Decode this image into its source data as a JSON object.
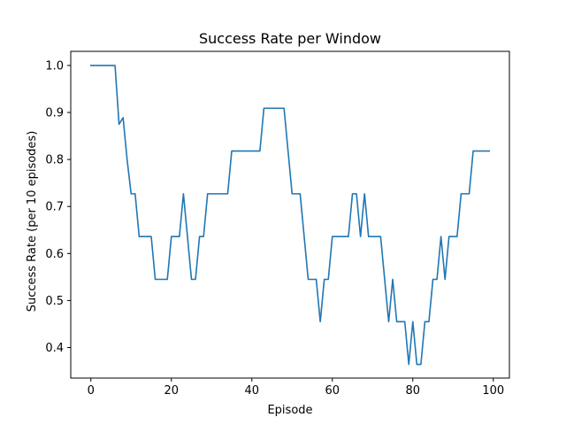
{
  "chart_data": {
    "type": "line",
    "title": "Success Rate per Window",
    "xlabel": "Episode",
    "ylabel": "Success Rate (per 10 episodes)",
    "xlim": [
      -5,
      104
    ],
    "ylim": [
      0.335,
      1.03
    ],
    "xticks": [
      0,
      20,
      40,
      60,
      80,
      100
    ],
    "yticks": [
      0.4,
      0.5,
      0.6,
      0.7,
      0.8,
      0.9,
      1.0
    ],
    "xtick_labels": [
      "0",
      "20",
      "40",
      "60",
      "80",
      "100"
    ],
    "ytick_labels": [
      "0.4",
      "0.5",
      "0.6",
      "0.7",
      "0.8",
      "0.9",
      "1.0"
    ],
    "grid": false,
    "series": [
      {
        "color": "#1f77b4",
        "x": [
          0,
          1,
          2,
          3,
          4,
          5,
          6,
          7,
          8,
          9,
          10,
          11,
          12,
          13,
          14,
          15,
          16,
          17,
          18,
          19,
          20,
          21,
          22,
          23,
          24,
          25,
          26,
          27,
          28,
          29,
          30,
          31,
          32,
          33,
          34,
          35,
          36,
          37,
          38,
          39,
          40,
          41,
          42,
          43,
          44,
          45,
          46,
          47,
          48,
          49,
          50,
          51,
          52,
          53,
          54,
          55,
          56,
          57,
          58,
          59,
          60,
          61,
          62,
          63,
          64,
          65,
          66,
          67,
          68,
          69,
          70,
          71,
          72,
          73,
          74,
          75,
          76,
          77,
          78,
          79,
          80,
          81,
          82,
          83,
          84,
          85,
          86,
          87,
          88,
          89,
          90,
          91,
          92,
          93,
          94,
          95,
          96,
          97,
          98,
          99
        ],
        "y": [
          1.0,
          1.0,
          1.0,
          1.0,
          1.0,
          1.0,
          1.0,
          0.875,
          0.889,
          0.8,
          0.727,
          0.727,
          0.636,
          0.636,
          0.636,
          0.636,
          0.545,
          0.545,
          0.545,
          0.545,
          0.636,
          0.636,
          0.636,
          0.727,
          0.636,
          0.545,
          0.545,
          0.636,
          0.636,
          0.727,
          0.727,
          0.727,
          0.727,
          0.727,
          0.727,
          0.818,
          0.818,
          0.818,
          0.818,
          0.818,
          0.818,
          0.818,
          0.818,
          0.909,
          0.909,
          0.909,
          0.909,
          0.909,
          0.909,
          0.818,
          0.727,
          0.727,
          0.727,
          0.636,
          0.545,
          0.545,
          0.545,
          0.455,
          0.545,
          0.545,
          0.636,
          0.636,
          0.636,
          0.636,
          0.636,
          0.727,
          0.727,
          0.636,
          0.727,
          0.636,
          0.636,
          0.636,
          0.636,
          0.545,
          0.455,
          0.545,
          0.455,
          0.455,
          0.455,
          0.364,
          0.455,
          0.364,
          0.364,
          0.455,
          0.455,
          0.545,
          0.545,
          0.636,
          0.545,
          0.636,
          0.636,
          0.636,
          0.727,
          0.727,
          0.727,
          0.818,
          0.818,
          0.818,
          0.818,
          0.818
        ]
      }
    ]
  }
}
